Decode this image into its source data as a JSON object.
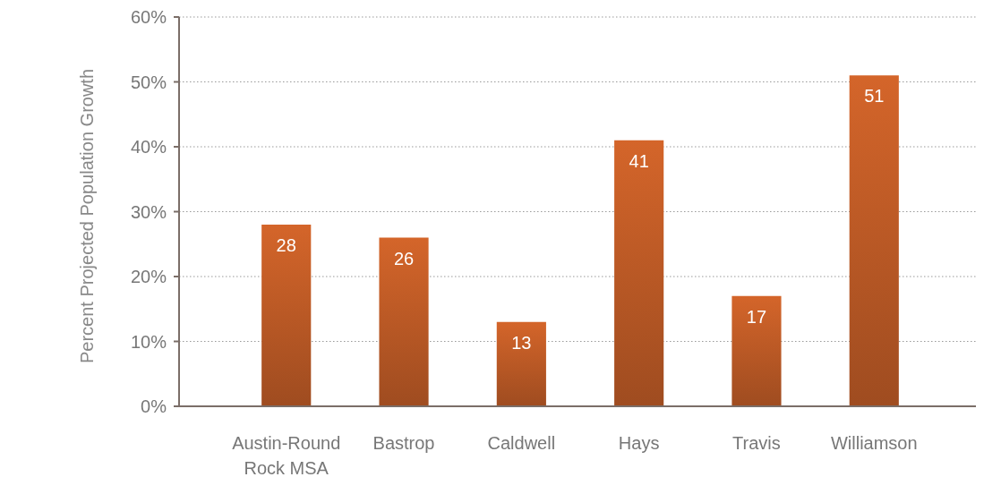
{
  "chart_data": {
    "type": "bar",
    "ylabel": "Percent Projected Population Growth",
    "categories": [
      "Austin-Round Rock MSA",
      "Bastrop",
      "Caldwell",
      "Hays",
      "Travis",
      "Williamson"
    ],
    "values": [
      28,
      26,
      13,
      41,
      17,
      51
    ],
    "color": "#d4652a",
    "data_labels": true,
    "grid": "y",
    "ylim": [
      0,
      60
    ],
    "yticks": [
      {
        "value": 0,
        "label": "0%"
      },
      {
        "value": 10,
        "label": "10%"
      },
      {
        "value": 20,
        "label": "20%"
      },
      {
        "value": 30,
        "label": "30%"
      },
      {
        "value": 40,
        "label": "40%"
      },
      {
        "value": 50,
        "label": "50%"
      },
      {
        "value": 60,
        "label": "60%"
      }
    ]
  }
}
